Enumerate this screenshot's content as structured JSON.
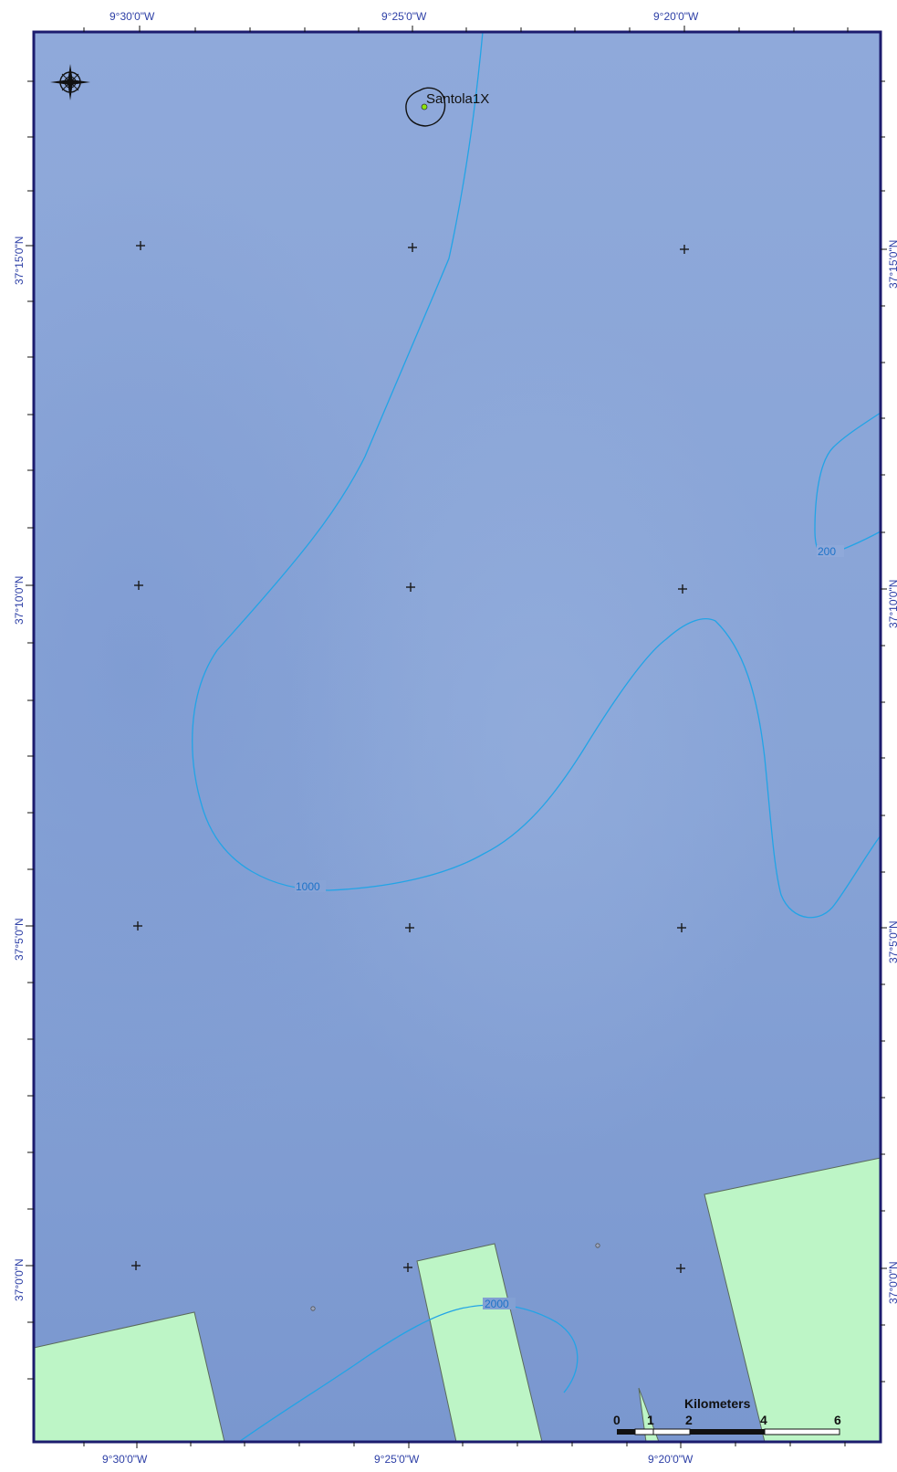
{
  "map": {
    "graticule": {
      "top_labels": [
        "9°30'0\"W",
        "9°25'0\"W",
        "9°20'0\"W"
      ],
      "bottom_labels": [
        "9°30'0\"W",
        "9°25'0\"W",
        "9°20'0\"W"
      ],
      "left_labels": [
        "37°15'0\"N",
        "37°10'0\"N",
        "37°5'0\"N",
        "37°0'0\"N"
      ],
      "right_labels": [
        "37°15'0\"N",
        "37°10'0\"N",
        "37°5'0\"N",
        "37°0'0\"N"
      ]
    },
    "well": {
      "name": "Santola1X"
    },
    "contours": {
      "label_1000": "1000",
      "label_2000": "2000",
      "label_200": "200"
    },
    "scale_bar": {
      "unit": "Kilometers",
      "ticks": [
        "0",
        "1",
        "2",
        "4",
        "6"
      ]
    },
    "colors": {
      "sea": "#86a2d6",
      "sea_deep": "#7b99d0",
      "land_blocks": "#bdf5c6",
      "contour": "#22a4e6",
      "frame": "#1c1c6e",
      "coord_text": "#2d3fa6",
      "well_dot": "#8ee60a"
    },
    "icons": [
      "compass-rose-icon"
    ]
  }
}
